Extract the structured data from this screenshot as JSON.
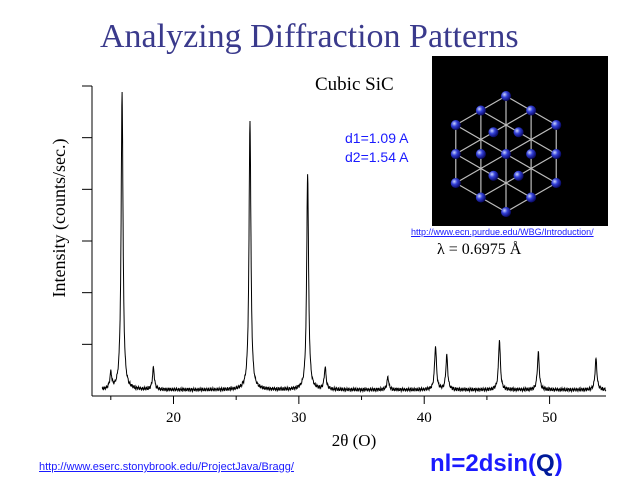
{
  "slide": {
    "title": "Analyzing Diffraction Patterns",
    "credit_link": "http://www.eserc.stonybrook.edu/ProjectJava/Bragg/",
    "formula_main": "nl=2dsin(",
    "formula_q": "Q",
    "formula_close": ")"
  },
  "crystal_image": {
    "caption_link": "http://www.ecn.purdue.edu/WBG/Introduction/"
  },
  "chart_data": {
    "type": "line",
    "title": "Cubic SiC",
    "xlabel": "2θ (O)",
    "ylabel": "Intensity (counts/sec.)",
    "xlim": [
      13.5,
      54.5
    ],
    "ylim": [
      0,
      100
    ],
    "x_ticks": [
      20,
      30,
      40,
      50
    ],
    "y_ticks_labeled": false,
    "annotations": [
      "d1=1.09 A",
      "d2=1.54 A",
      "λ = 0.6975 Å"
    ],
    "peaks": [
      {
        "x": 15.0,
        "height": 5
      },
      {
        "x": 15.9,
        "height": 96
      },
      {
        "x": 18.4,
        "height": 7
      },
      {
        "x": 26.1,
        "height": 87
      },
      {
        "x": 30.7,
        "height": 70
      },
      {
        "x": 32.1,
        "height": 7
      },
      {
        "x": 37.1,
        "height": 4
      },
      {
        "x": 40.9,
        "height": 14
      },
      {
        "x": 41.8,
        "height": 11
      },
      {
        "x": 46.0,
        "height": 16
      },
      {
        "x": 49.1,
        "height": 12
      },
      {
        "x": 53.7,
        "height": 10
      }
    ],
    "baseline": 2,
    "grid": false,
    "legend": "none"
  }
}
